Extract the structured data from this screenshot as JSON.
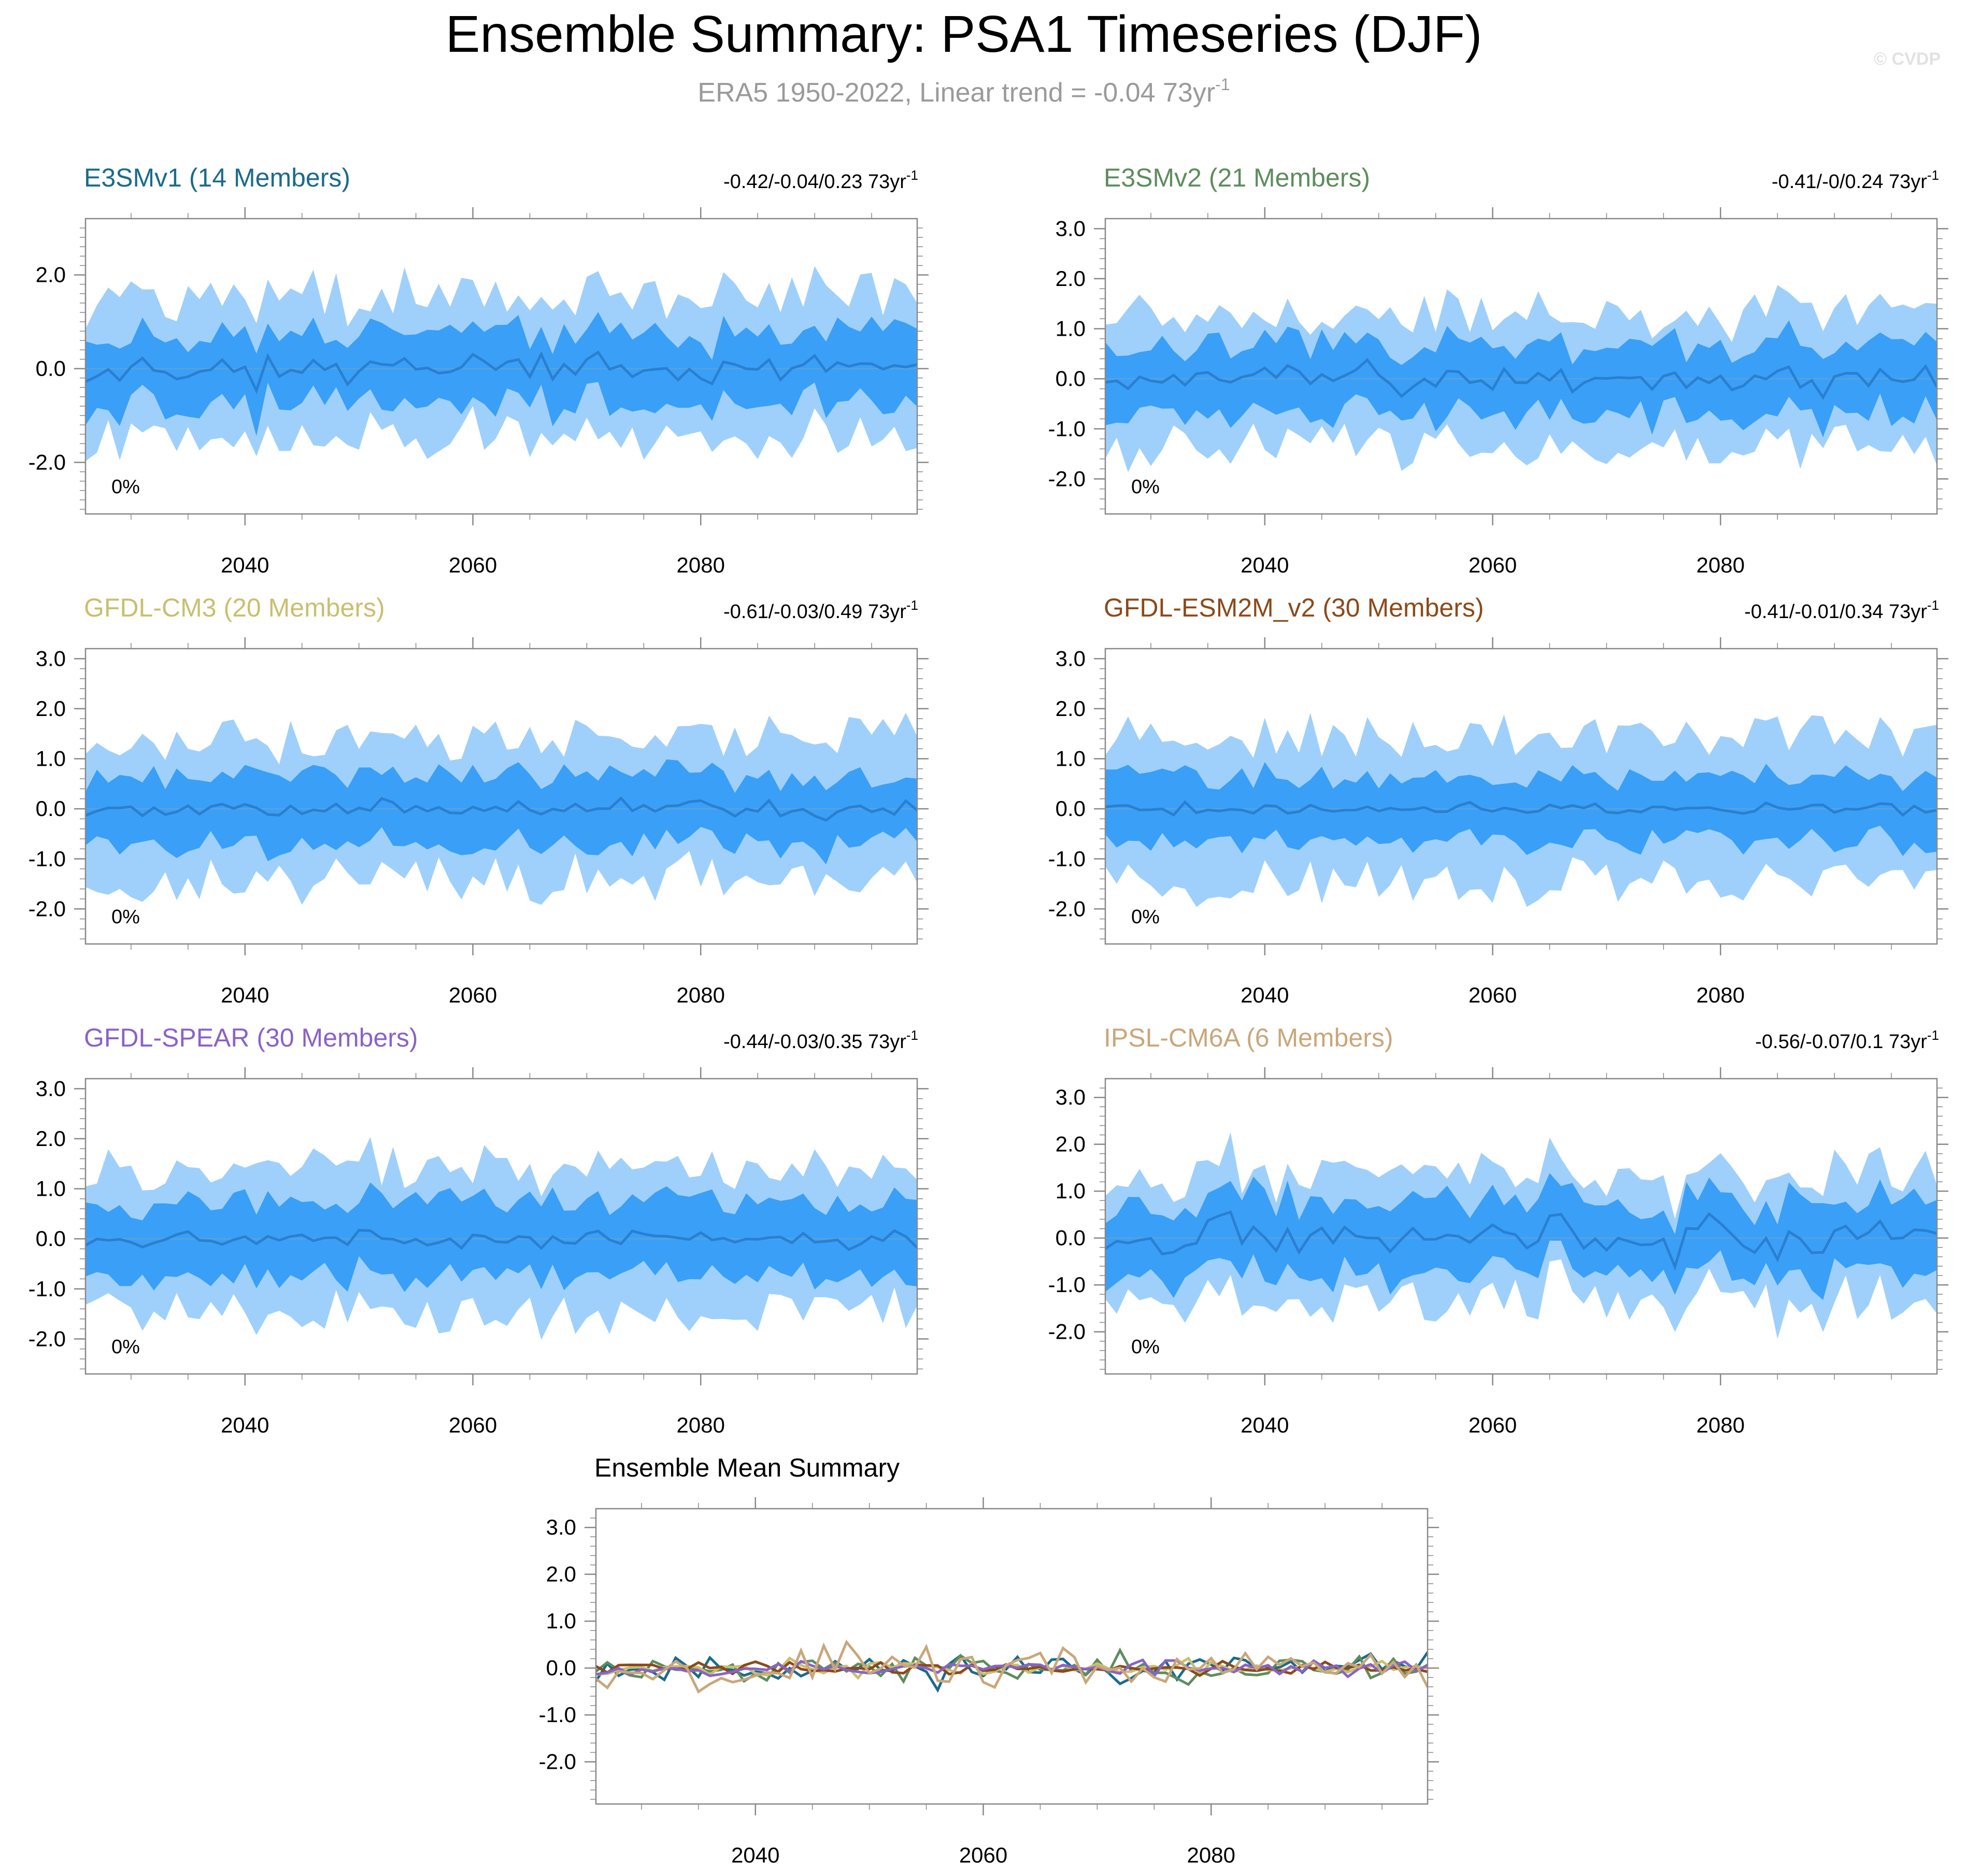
{
  "header": {
    "title": "Ensemble Summary: PSA1 Timeseries (DJF)",
    "subtitle": "ERA5 1950-2022, Linear trend = -0.04 73yr",
    "subtitle_sup": "-1",
    "watermark": "© CVDP"
  },
  "colors": {
    "outer_band": "#9fd0fb",
    "inner_band": "#3a9ff7",
    "mean_line": "#2a7fd0",
    "axis": "#000000"
  },
  "chart_data": [
    {
      "id": "e3smv1",
      "type": "area",
      "title": "E3SMv1 (14 Members)",
      "title_color": "#1a6b8a",
      "trend_text": "-0.42/-0.04/0.23 73yr",
      "trend_sup": "-1",
      "percent_label": "0%",
      "x_range": [
        2026,
        2099
      ],
      "ylim": [
        -3.1,
        3.2
      ],
      "yticks": [
        -2.0,
        0.0,
        2.0
      ],
      "xticks": [
        2040,
        2060,
        2080
      ],
      "series": {
        "seed": 11,
        "mean_amp": 0.22,
        "inner": 0.75,
        "outer": 1.5
      }
    },
    {
      "id": "e3smv2",
      "type": "area",
      "title": "E3SMv2 (21 Members)",
      "title_color": "#5e8c5e",
      "trend_text": "-0.41/-0/0.24 73yr",
      "trend_sup": "-1",
      "percent_label": "0%",
      "x_range": [
        2026,
        2099
      ],
      "ylim": [
        -2.7,
        3.2
      ],
      "yticks": [
        -2.0,
        -1.0,
        0.0,
        1.0,
        2.0,
        3.0
      ],
      "xticks": [
        2040,
        2060,
        2080
      ],
      "series": {
        "seed": 23,
        "mean_amp": 0.2,
        "inner": 0.7,
        "outer": 1.35
      }
    },
    {
      "id": "gfdl-cm3",
      "type": "area",
      "title": "GFDL-CM3 (20 Members)",
      "title_color": "#c9bf6f",
      "trend_text": "-0.61/-0.03/0.49 73yr",
      "trend_sup": "-1",
      "percent_label": "0%",
      "x_range": [
        2026,
        2099
      ],
      "ylim": [
        -2.7,
        3.2
      ],
      "yticks": [
        -2.0,
        -1.0,
        0.0,
        1.0,
        2.0,
        3.0
      ],
      "xticks": [
        2040,
        2060,
        2080
      ],
      "series": {
        "seed": 37,
        "mean_amp": 0.12,
        "inner": 0.7,
        "outer": 1.4
      }
    },
    {
      "id": "gfdl-esm2m",
      "type": "area",
      "title": "GFDL-ESM2M_v2 (30 Members)",
      "title_color": "#8b4a1a",
      "trend_text": "-0.41/-0.01/0.34 73yr",
      "trend_sup": "-1",
      "percent_label": "0%",
      "x_range": [
        2026,
        2099
      ],
      "ylim": [
        -2.7,
        3.2
      ],
      "yticks": [
        -2.0,
        -1.0,
        0.0,
        1.0,
        2.0,
        3.0
      ],
      "xticks": [
        2040,
        2060,
        2080
      ],
      "series": {
        "seed": 41,
        "mean_amp": 0.1,
        "inner": 0.65,
        "outer": 1.45
      }
    },
    {
      "id": "gfdl-spear",
      "type": "area",
      "title": "GFDL-SPEAR (30 Members)",
      "title_color": "#8a62c8",
      "trend_text": "-0.44/-0.03/0.35 73yr",
      "trend_sup": "-1",
      "percent_label": "0%",
      "x_range": [
        2026,
        2099
      ],
      "ylim": [
        -2.7,
        3.2
      ],
      "yticks": [
        -2.0,
        -1.0,
        0.0,
        1.0,
        2.0,
        3.0
      ],
      "xticks": [
        2040,
        2060,
        2080
      ],
      "series": {
        "seed": 53,
        "mean_amp": 0.12,
        "inner": 0.75,
        "outer": 1.45
      }
    },
    {
      "id": "ipsl-cm6a",
      "type": "area",
      "title": "IPSL-CM6A (6 Members)",
      "title_color": "#c9a77a",
      "trend_text": "-0.56/-0.07/0.1 73yr",
      "trend_sup": "-1",
      "percent_label": "0%",
      "x_range": [
        2026,
        2099
      ],
      "ylim": [
        -2.9,
        3.4
      ],
      "yticks": [
        -2.0,
        -1.0,
        0.0,
        1.0,
        2.0,
        3.0
      ],
      "xticks": [
        2040,
        2060,
        2080
      ],
      "series": {
        "seed": 67,
        "mean_amp": 0.35,
        "inner": 0.8,
        "outer": 1.35
      }
    },
    {
      "id": "ensemble-mean",
      "type": "line",
      "title": "Ensemble Mean Summary",
      "title_color": "#000000",
      "x_range": [
        2026,
        2099
      ],
      "ylim": [
        -2.9,
        3.4
      ],
      "yticks": [
        -2.0,
        -1.0,
        0.0,
        1.0,
        2.0,
        3.0
      ],
      "xticks": [
        2040,
        2060,
        2080
      ],
      "lines": [
        {
          "name": "E3SMv1",
          "color": "#1a6b8a",
          "seed": 11,
          "amp": 0.22
        },
        {
          "name": "E3SMv2",
          "color": "#5e8c5e",
          "seed": 23,
          "amp": 0.2
        },
        {
          "name": "GFDL-CM3",
          "color": "#c9bf6f",
          "seed": 37,
          "amp": 0.12
        },
        {
          "name": "GFDL-ESM2M_v2",
          "color": "#8b4a1a",
          "seed": 41,
          "amp": 0.1
        },
        {
          "name": "GFDL-SPEAR",
          "color": "#8a62c8",
          "seed": 53,
          "amp": 0.12
        },
        {
          "name": "IPSL-CM6A",
          "color": "#c9a77a",
          "seed": 67,
          "amp": 0.35
        }
      ]
    }
  ]
}
